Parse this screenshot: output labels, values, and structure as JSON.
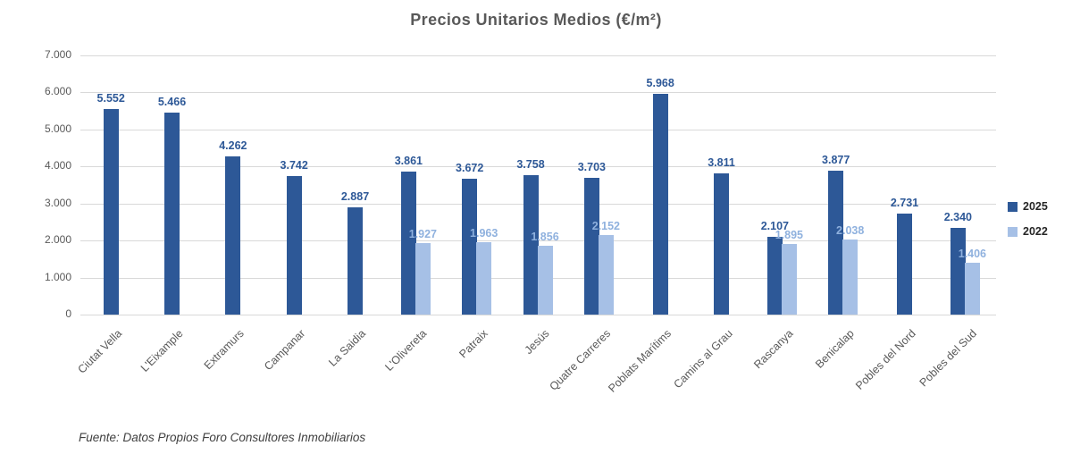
{
  "footer": "Fuente: Datos Propios Foro Consultores Inmobiliarios",
  "chart_data": {
    "type": "bar",
    "title": "Precios Unitarios Medios (€/m²)",
    "categories": [
      "Ciutat Vella",
      "L'Eixample",
      "Extramurs",
      "Campanar",
      "La Saidia",
      "L'Olivereta",
      "Patraix",
      "Jesús",
      "Quatre Carreres",
      "Poblats Marítims",
      "Camins al Grau",
      "Rascanya",
      "Benicalap",
      "Pobles del Nord",
      "Pobles del Sud"
    ],
    "series": [
      {
        "name": "2025",
        "color": "#2d5897",
        "label_color": "#2d5897",
        "values": [
          5552,
          5466,
          4262,
          3742,
          2887,
          3861,
          3672,
          3758,
          3703,
          5968,
          3811,
          2107,
          3877,
          2731,
          2340
        ]
      },
      {
        "name": "2022",
        "color": "#a6c0e6",
        "label_color": "#8fb1de",
        "values": [
          null,
          null,
          null,
          null,
          null,
          1927,
          1963,
          1856,
          2152,
          null,
          null,
          1895,
          2038,
          null,
          1406
        ]
      }
    ],
    "ylim": [
      0,
      7000
    ],
    "ytick_step": 1000,
    "grid": true,
    "legend_position": "right"
  }
}
